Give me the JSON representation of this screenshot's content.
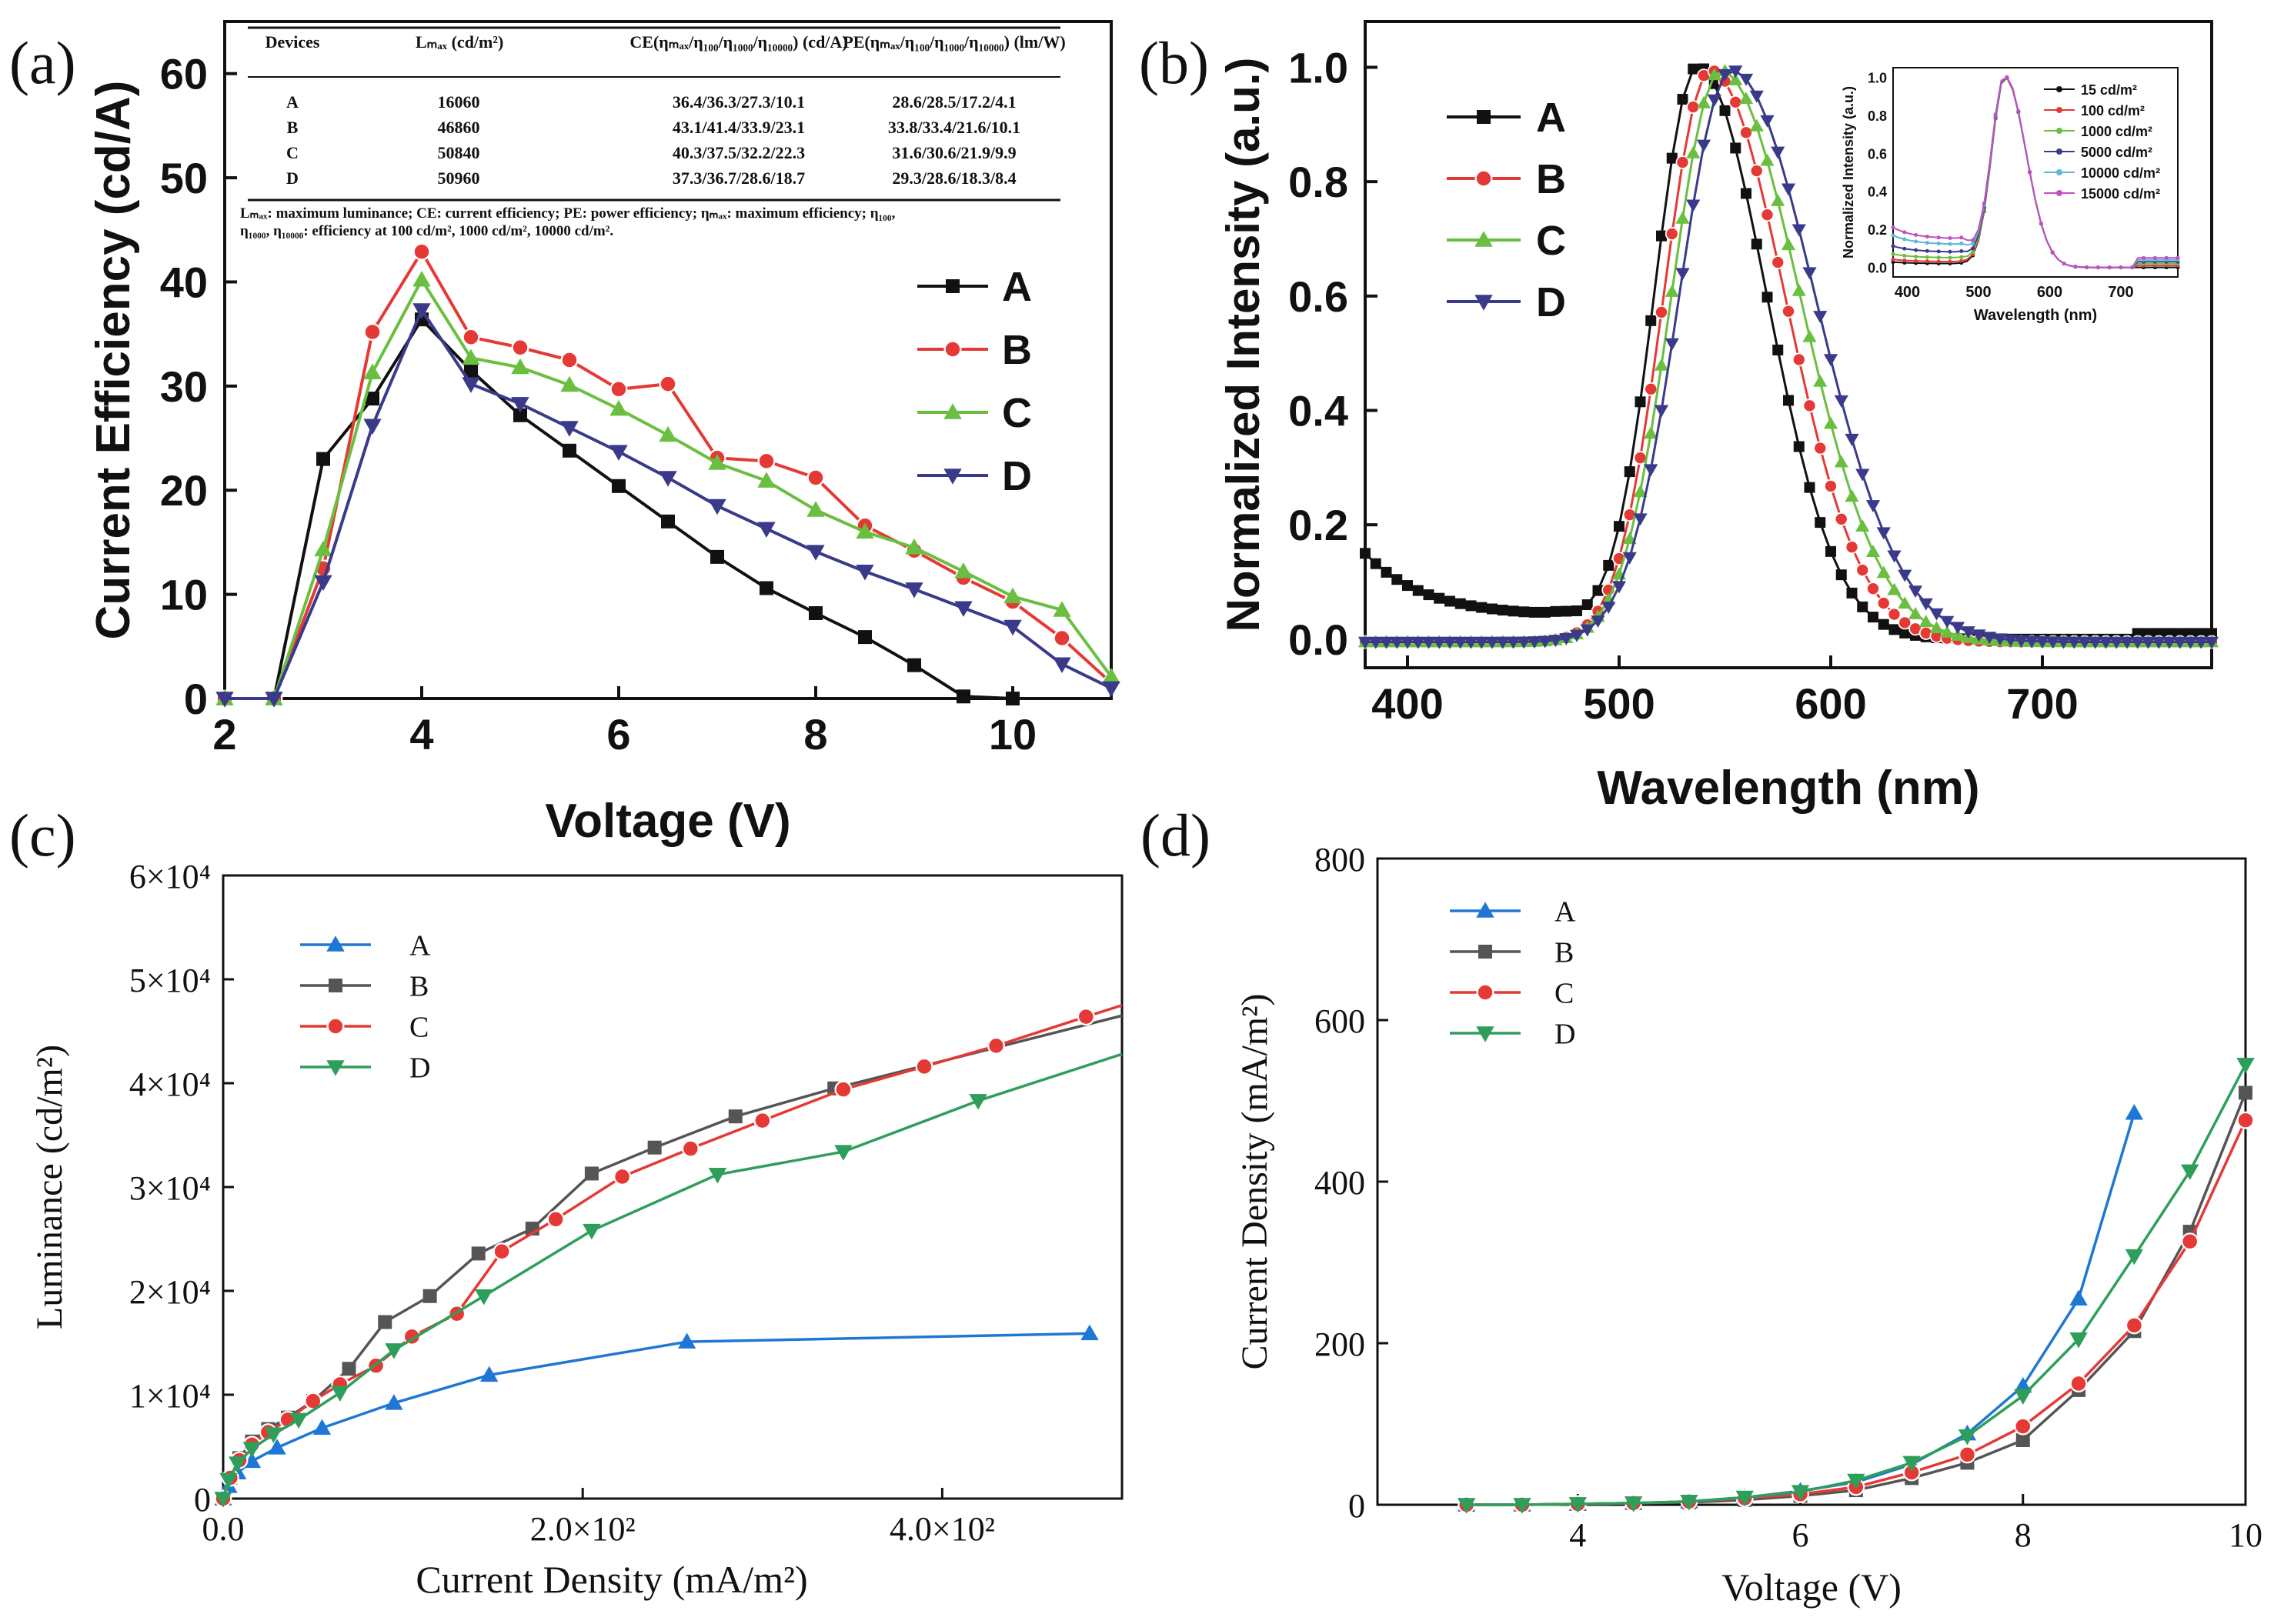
{
  "chart_data": [
    {
      "panel": "(a)",
      "type": "line",
      "xlabel": "Voltage (V)",
      "ylabel": "Current Efficiency (cd/A)",
      "xlim": [
        2,
        11
      ],
      "ylim": [
        0,
        65
      ],
      "xticks": [
        2,
        4,
        6,
        8,
        10
      ],
      "yticks": [
        0,
        10,
        20,
        30,
        40,
        50,
        60
      ],
      "series": [
        {
          "name": "A",
          "color": "#111111",
          "marker": "square",
          "x": [
            2,
            2.5,
            3,
            3.5,
            4,
            4.5,
            5,
            5.5,
            6,
            6.5,
            7,
            7.5,
            8,
            8.5,
            9,
            9.5,
            10
          ],
          "y": [
            0,
            0,
            23,
            28.8,
            36.4,
            31.5,
            27.2,
            23.8,
            20.4,
            17,
            13.6,
            10.6,
            8.2,
            5.9,
            3.2,
            0.2,
            0
          ]
        },
        {
          "name": "B",
          "color": "#e53935",
          "marker": "circle",
          "x": [
            2,
            2.5,
            3,
            3.5,
            4,
            4.5,
            5,
            5.5,
            6,
            6.5,
            7,
            7.5,
            8,
            8.5,
            9,
            9.5,
            10,
            10.5,
            11
          ],
          "y": [
            0,
            0,
            12.5,
            35.2,
            42.9,
            34.7,
            33.7,
            32.5,
            29.7,
            30.2,
            23.1,
            22.8,
            21.2,
            16.6,
            14.2,
            11.6,
            9.3,
            5.8,
            1.5
          ]
        },
        {
          "name": "C",
          "color": "#6abf40",
          "marker": "triangle-up",
          "x": [
            2,
            2.5,
            3,
            3.5,
            4,
            4.5,
            5,
            5.5,
            6,
            6.5,
            7,
            7.5,
            8,
            8.5,
            9,
            9.5,
            10,
            10.5,
            11
          ],
          "y": [
            0,
            0,
            14.3,
            31.3,
            40.2,
            32.7,
            31.8,
            30.1,
            27.8,
            25.3,
            22.6,
            20.9,
            18.1,
            16,
            14.5,
            12.2,
            9.8,
            8.5,
            2.1
          ]
        },
        {
          "name": "D",
          "color": "#3a3a8a",
          "marker": "triangle-down",
          "x": [
            2,
            2.5,
            3,
            3.5,
            4,
            4.5,
            5,
            5.5,
            6,
            6.5,
            7,
            7.5,
            8,
            8.5,
            9,
            9.5,
            10,
            10.5,
            11
          ],
          "y": [
            0,
            0,
            11.2,
            26.2,
            37.3,
            30.2,
            28.3,
            26,
            23.7,
            21.2,
            18.5,
            16.3,
            14.1,
            12.2,
            10.5,
            8.7,
            6.9,
            3.3,
            1
          ]
        }
      ],
      "legend": {
        "labels": [
          "A",
          "B",
          "C",
          "D"
        ],
        "placement": "center-right"
      },
      "inset_table": {
        "headers": [
          "Devices",
          "Lₘₐₓ (cd/m²)",
          "CE(ηₘₐₓ/η₁₀₀/η₁₀₀₀/η₁₀₀₀₀) (cd/A)",
          "PE(ηₘₐₓ/η₁₀₀/η₁₀₀₀/η₁₀₀₀₀) (lm/W)"
        ],
        "rows": [
          [
            "A",
            "16060",
            "36.4/36.3/27.3/10.1",
            "28.6/28.5/17.2/4.1"
          ],
          [
            "B",
            "46860",
            "43.1/41.4/33.9/23.1",
            "33.8/33.4/21.6/10.1"
          ],
          [
            "C",
            "50840",
            "40.3/37.5/32.2/22.3",
            "31.6/30.6/21.9/9.9"
          ],
          [
            "D",
            "50960",
            "37.3/36.7/28.6/18.7",
            "29.3/28.6/18.3/8.4"
          ]
        ],
        "footnote_1": "Lₘₐₓ: maximum luminance; CE: current efficiency; PE: power efficiency; ηₘₐₓ: maximum efficiency; η₁₀₀,",
        "footnote_2": "η₁₀₀₀, η₁₀₀₀₀: efficiency at 100 cd/m², 1000 cd/m², 10000 cd/m²."
      }
    },
    {
      "panel": "(b)",
      "type": "line",
      "xlabel": "Wavelength (nm)",
      "ylabel": "Normalized Intensity (a.u.)",
      "xlim": [
        380,
        780
      ],
      "ylim": [
        -0.05,
        1.08
      ],
      "xticks": [
        400,
        500,
        600,
        700
      ],
      "yticks": [
        0.0,
        0.2,
        0.4,
        0.6,
        0.8,
        1.0
      ],
      "series": [
        {
          "name": "A",
          "color": "#111111",
          "marker": "square",
          "peak_nm": 537
        },
        {
          "name": "B",
          "color": "#e53935",
          "marker": "circle",
          "peak_nm": 543
        },
        {
          "name": "C",
          "color": "#6abf40",
          "marker": "triangle-up",
          "peak_nm": 548
        },
        {
          "name": "D",
          "color": "#3a3a8a",
          "marker": "triangle-down",
          "peak_nm": 553
        }
      ],
      "legend": {
        "labels": [
          "A",
          "B",
          "C",
          "D"
        ],
        "placement": "top-left"
      },
      "inset": {
        "xlabel": "Wavelength (nm)",
        "ylabel": "Normalized Intensity (a.u.)",
        "xlim": [
          380,
          780
        ],
        "ylim": [
          -0.05,
          1.05
        ],
        "xticks": [
          400,
          500,
          600,
          700
        ],
        "yticks": [
          0.0,
          0.2,
          0.4,
          0.6,
          0.8,
          1.0
        ],
        "legend": [
          "15 cd/m²",
          "100 cd/m²",
          "1000 cd/m²",
          "5000 cd/m²",
          "10000 cd/m²",
          "15000 cd/m²"
        ],
        "colors": [
          "#111111",
          "#e53935",
          "#6abf40",
          "#3a3a8a",
          "#5bb8d6",
          "#c04fc0"
        ],
        "peak_nm": 537
      }
    },
    {
      "panel": "(c)",
      "type": "line",
      "xlabel": "Current Density (mA/m²)",
      "ylabel": "Luminance (cd/m²)",
      "xlim": [
        0,
        500
      ],
      "ylim": [
        0,
        60000
      ],
      "xticks": [
        0.0,
        200,
        400
      ],
      "xtick_labels": [
        "0.0",
        "2.0×10²",
        "4.0×10²"
      ],
      "yticks": [
        0,
        10000,
        20000,
        30000,
        40000,
        50000,
        60000
      ],
      "ytick_labels": [
        "0",
        "1×10⁴",
        "2×10⁴",
        "3×10⁴",
        "4×10⁴",
        "5×10⁴",
        "6×10⁴"
      ],
      "series": [
        {
          "name": "A",
          "color": "#1f77d4",
          "marker": "triangle-up",
          "x": [
            0,
            3,
            8,
            16,
            30,
            55,
            95,
            148,
            258,
            482
          ],
          "y": [
            0,
            1200,
            2500,
            3600,
            4900,
            6800,
            9200,
            11900,
            15100,
            15900
          ]
        },
        {
          "name": "B",
          "color": "#555555",
          "marker": "square",
          "x": [
            0,
            4,
            9,
            16,
            25,
            36,
            50,
            70,
            90,
            115,
            142,
            172,
            205,
            240,
            285,
            340,
            500
          ],
          "y": [
            0,
            2000,
            3900,
            5500,
            6700,
            7800,
            9400,
            12500,
            17000,
            19500,
            23600,
            26000,
            31300,
            33800,
            36800,
            39500,
            46500
          ]
        },
        {
          "name": "C",
          "color": "#e53935",
          "marker": "circle",
          "x": [
            0,
            4,
            9,
            16,
            25,
            36,
            50,
            65,
            85,
            105,
            130,
            155,
            185,
            222,
            260,
            300,
            345,
            390,
            430,
            480,
            500
          ],
          "y": [
            0,
            2000,
            3700,
            5200,
            6400,
            7600,
            9400,
            11000,
            12800,
            15600,
            17800,
            23800,
            26900,
            31000,
            33700,
            36400,
            39400,
            41600,
            43600,
            46400,
            47500
          ]
        },
        {
          "name": "D",
          "color": "#2e9e5b",
          "marker": "triangle-down",
          "x": [
            0,
            3,
            8,
            16,
            28,
            42,
            65,
            95,
            145,
            205,
            275,
            345,
            420,
            500
          ],
          "y": [
            0,
            1800,
            3400,
            4800,
            6200,
            7600,
            10200,
            14300,
            19500,
            25800,
            31200,
            33400,
            38300,
            42800
          ]
        }
      ],
      "legend": {
        "labels": [
          "A",
          "B",
          "C",
          "D"
        ],
        "placement": "top-left"
      }
    },
    {
      "panel": "(d)",
      "type": "line",
      "xlabel": "Voltage (V)",
      "ylabel": "Current Density (mA/m²)",
      "xlim": [
        2.2,
        10
      ],
      "ylim": [
        0,
        800
      ],
      "xticks": [
        4,
        6,
        8,
        10
      ],
      "yticks": [
        0,
        200,
        400,
        600,
        800
      ],
      "series": [
        {
          "name": "A",
          "color": "#1f77d4",
          "marker": "triangle-up",
          "x": [
            3,
            3.5,
            4,
            4.5,
            5,
            5.5,
            6,
            6.5,
            7,
            7.5,
            8,
            8.5,
            9
          ],
          "y": [
            0,
            0,
            1,
            2,
            4,
            9,
            17,
            28,
            50,
            88,
            147,
            255,
            485
          ]
        },
        {
          "name": "B",
          "color": "#555555",
          "marker": "square",
          "x": [
            3,
            3.5,
            4,
            4.5,
            5,
            5.5,
            6,
            6.5,
            7,
            7.5,
            8,
            8.5,
            9,
            9.5,
            10
          ],
          "y": [
            0,
            0,
            1,
            2,
            3,
            6,
            11,
            18,
            33,
            52,
            80,
            142,
            215,
            338,
            510
          ]
        },
        {
          "name": "C",
          "color": "#e53935",
          "marker": "circle",
          "x": [
            3,
            3.5,
            4,
            4.5,
            5,
            5.5,
            6,
            6.5,
            7,
            7.5,
            8,
            8.5,
            9,
            9.5,
            10
          ],
          "y": [
            0,
            0,
            1,
            2,
            4,
            8,
            13,
            22,
            40,
            62,
            97,
            150,
            222,
            326,
            476
          ]
        },
        {
          "name": "D",
          "color": "#2e9e5b",
          "marker": "triangle-down",
          "x": [
            3,
            3.5,
            4,
            4.5,
            5,
            5.5,
            6,
            6.5,
            7,
            7.5,
            8,
            8.5,
            9,
            9.5,
            10
          ],
          "y": [
            0,
            0,
            1,
            2,
            4,
            9,
            16,
            30,
            52,
            85,
            135,
            205,
            308,
            413,
            545
          ]
        }
      ],
      "legend": {
        "labels": [
          "A",
          "B",
          "C",
          "D"
        ],
        "placement": "top-left"
      }
    }
  ]
}
